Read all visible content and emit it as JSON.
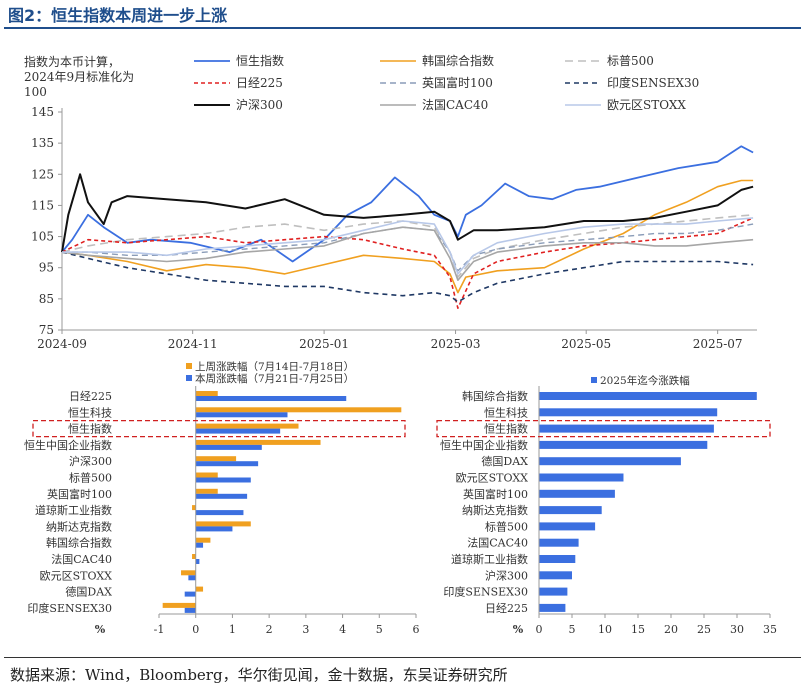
{
  "title": "图2：恒生指数本周进一步上涨",
  "source": "数据来源：Wind，Bloomberg，华尔街见闻，金十数据，东吴证券研究所",
  "chart_data": [
    {
      "type": "line",
      "ylabel": "指数为本币计算，2024年9月标准化为100",
      "ylabel_lines": [
        "指数为本币计算，",
        "2024年9月标准化为",
        "100"
      ],
      "ylim": [
        75,
        145
      ],
      "yticks": [
        75,
        85,
        95,
        105,
        115,
        125,
        135,
        145
      ],
      "xlim": [
        2024.667,
        2025.55
      ],
      "xticks": [
        {
          "label": "2024-09",
          "v": 2024.667
        },
        {
          "label": "2024-11",
          "v": 2024.833
        },
        {
          "label": "2025-01",
          "v": 2025.0
        },
        {
          "label": "2025-03",
          "v": 2025.167
        },
        {
          "label": "2025-05",
          "v": 2025.333
        },
        {
          "label": "2025-07",
          "v": 2025.5
        }
      ],
      "series": [
        {
          "name": "恒生指数",
          "color": "#3b6fe0",
          "dash": "",
          "width": 1.8,
          "x": [
            2024.667,
            2024.68,
            2024.7,
            2024.72,
            2024.75,
            2024.78,
            2024.83,
            2024.88,
            2024.92,
            2024.96,
            2025.0,
            2025.03,
            2025.06,
            2025.09,
            2025.12,
            2025.14,
            2025.16,
            2025.17,
            2025.18,
            2025.2,
            2025.23,
            2025.26,
            2025.29,
            2025.32,
            2025.35,
            2025.4,
            2025.45,
            2025.5,
            2025.53,
            2025.545
          ],
          "y": [
            100,
            104,
            112,
            108,
            103,
            104,
            103,
            100,
            104,
            97,
            104,
            112,
            116,
            124,
            118,
            112,
            110,
            105,
            112,
            115,
            122,
            118,
            117,
            120,
            121,
            124,
            127,
            129,
            134,
            132
          ]
        },
        {
          "name": "韩国综合指数",
          "color": "#f0a020",
          "dash": "",
          "width": 1.6,
          "x": [
            2024.667,
            2024.7,
            2024.75,
            2024.8,
            2024.85,
            2024.9,
            2024.95,
            2025.0,
            2025.05,
            2025.1,
            2025.14,
            2025.16,
            2025.17,
            2025.18,
            2025.22,
            2025.28,
            2025.33,
            2025.38,
            2025.42,
            2025.46,
            2025.5,
            2025.53,
            2025.545
          ],
          "y": [
            100,
            99,
            97,
            94,
            96,
            95,
            93,
            96,
            99,
            98,
            97,
            93,
            87,
            92,
            94,
            95,
            101,
            106,
            112,
            116,
            121,
            123,
            123
          ]
        },
        {
          "name": "标普500",
          "color": "#bfbfbf",
          "dash": "8,5",
          "width": 1.6,
          "x": [
            2024.667,
            2024.7,
            2024.75,
            2024.8,
            2024.85,
            2024.9,
            2024.95,
            2025.0,
            2025.05,
            2025.1,
            2025.14,
            2025.16,
            2025.17,
            2025.19,
            2025.22,
            2025.28,
            2025.33,
            2025.38,
            2025.42,
            2025.46,
            2025.5,
            2025.545
          ],
          "y": [
            100,
            102,
            104,
            105,
            106,
            108,
            109,
            107,
            109,
            110,
            108,
            100,
            92,
            98,
            101,
            104,
            106,
            108,
            109,
            110,
            111,
            112
          ]
        },
        {
          "name": "日经225",
          "color": "#e02020",
          "dash": "4,3",
          "width": 1.6,
          "x": [
            2024.667,
            2024.7,
            2024.75,
            2024.8,
            2024.85,
            2024.9,
            2024.95,
            2025.0,
            2025.05,
            2025.1,
            2025.14,
            2025.16,
            2025.17,
            2025.19,
            2025.22,
            2025.28,
            2025.33,
            2025.38,
            2025.42,
            2025.46,
            2025.5,
            2025.545
          ],
          "y": [
            100,
            104,
            103,
            104,
            105,
            103,
            104,
            105,
            104,
            101,
            99,
            92,
            82,
            93,
            97,
            100,
            102,
            103,
            104,
            105,
            106,
            111
          ]
        },
        {
          "name": "英国富时100",
          "color": "#8a9cb8",
          "dash": "6,4",
          "width": 1.4,
          "x": [
            2024.667,
            2024.7,
            2024.75,
            2024.8,
            2024.85,
            2024.9,
            2024.95,
            2025.0,
            2025.05,
            2025.1,
            2025.14,
            2025.16,
            2025.17,
            2025.19,
            2025.22,
            2025.28,
            2025.33,
            2025.38,
            2025.42,
            2025.46,
            2025.5,
            2025.545
          ],
          "y": [
            100,
            100,
            99,
            99,
            100,
            101,
            102,
            103,
            106,
            108,
            107,
            100,
            94,
            99,
            101,
            103,
            104,
            105,
            106,
            106,
            107,
            109
          ]
        },
        {
          "name": "印度SENSEX30",
          "color": "#1f3864",
          "dash": "5,4",
          "width": 1.6,
          "x": [
            2024.667,
            2024.7,
            2024.75,
            2024.8,
            2024.85,
            2024.9,
            2024.95,
            2025.0,
            2025.05,
            2025.1,
            2025.14,
            2025.16,
            2025.17,
            2025.19,
            2025.22,
            2025.28,
            2025.33,
            2025.38,
            2025.42,
            2025.46,
            2025.5,
            2025.545
          ],
          "y": [
            100,
            98,
            95,
            93,
            91,
            90,
            89,
            89,
            87,
            86,
            87,
            86,
            84,
            87,
            90,
            93,
            95,
            97,
            97,
            97,
            97,
            96
          ]
        },
        {
          "name": "沪深300",
          "color": "#111111",
          "dash": "",
          "width": 2.0,
          "x": [
            2024.667,
            2024.675,
            2024.69,
            2024.7,
            2024.72,
            2024.73,
            2024.75,
            2024.8,
            2024.85,
            2024.9,
            2024.95,
            2025.0,
            2025.05,
            2025.1,
            2025.14,
            2025.16,
            2025.17,
            2025.19,
            2025.22,
            2025.28,
            2025.33,
            2025.38,
            2025.42,
            2025.46,
            2025.5,
            2025.53,
            2025.545
          ],
          "y": [
            100,
            112,
            125,
            116,
            109,
            116,
            118,
            117,
            116,
            114,
            117,
            112,
            111,
            112,
            113,
            110,
            104,
            107,
            107,
            108,
            110,
            110,
            111,
            113,
            115,
            120,
            121
          ]
        },
        {
          "name": "法国CAC40",
          "color": "#a6a6a6",
          "dash": "",
          "width": 1.6,
          "x": [
            2024.667,
            2024.7,
            2024.75,
            2024.8,
            2024.85,
            2024.9,
            2024.95,
            2025.0,
            2025.05,
            2025.1,
            2025.14,
            2025.16,
            2025.17,
            2025.19,
            2025.22,
            2025.28,
            2025.33,
            2025.38,
            2025.42,
            2025.46,
            2025.5,
            2025.545
          ],
          "y": [
            100,
            99,
            98,
            97,
            98,
            100,
            101,
            102,
            106,
            108,
            107,
            98,
            91,
            97,
            100,
            102,
            103,
            103,
            102,
            102,
            103,
            104
          ]
        },
        {
          "name": "欧元区STOXX",
          "color": "#b8c8e8",
          "dash": "",
          "width": 1.6,
          "x": [
            2024.667,
            2024.7,
            2024.75,
            2024.8,
            2024.85,
            2024.9,
            2024.95,
            2025.0,
            2025.05,
            2025.1,
            2025.14,
            2025.16,
            2025.17,
            2025.19,
            2025.22,
            2025.28,
            2025.33,
            2025.38,
            2025.42,
            2025.46,
            2025.5,
            2025.545
          ],
          "y": [
            100,
            100,
            100,
            99,
            101,
            102,
            103,
            104,
            107,
            110,
            109,
            100,
            93,
            99,
            103,
            106,
            108,
            109,
            109,
            109,
            110,
            111
          ]
        }
      ]
    },
    {
      "type": "bar",
      "orientation": "horizontal",
      "categories": [
        "日经225",
        "恒生科技",
        "恒生指数",
        "恒生中国企业指数",
        "沪深300",
        "标普500",
        "英国富时100",
        "道琼斯工业指数",
        "纳斯达克指数",
        "韩国综合指数",
        "法国CAC40",
        "欧元区STOXX",
        "德国DAX",
        "印度SENSEX30"
      ],
      "series": [
        {
          "name": "上周涨跌幅（7月14日-7月18日）",
          "color": "#f0a020",
          "values": [
            0.6,
            5.6,
            2.8,
            3.4,
            1.1,
            0.6,
            0.6,
            -0.1,
            1.5,
            0.4,
            -0.1,
            -0.4,
            0.2,
            -0.9
          ]
        },
        {
          "name": "本周涨跌幅（7月21日-7月25日）",
          "color": "#3b6fe0",
          "values": [
            4.1,
            2.5,
            2.3,
            1.8,
            1.7,
            1.5,
            1.4,
            1.3,
            1.0,
            0.2,
            0.1,
            -0.2,
            -0.3,
            -0.3
          ]
        }
      ],
      "xlim": [
        -1,
        6
      ],
      "xticks": [
        -1,
        0,
        1,
        2,
        3,
        4,
        5,
        6
      ],
      "xunit": "%",
      "highlight": "恒生指数"
    },
    {
      "type": "bar",
      "orientation": "horizontal",
      "categories": [
        "韩国综合指数",
        "恒生科技",
        "恒生指数",
        "恒生中国企业指数",
        "德国DAX",
        "欧元区STOXX",
        "英国富时100",
        "纳斯达克指数",
        "标普500",
        "法国CAC40",
        "道琼斯工业指数",
        "沪深300",
        "印度SENSEX30",
        "日经225"
      ],
      "series": [
        {
          "name": "2025年迄今涨跌幅",
          "color": "#3b6fe0",
          "values": [
            33.0,
            27.0,
            26.5,
            25.5,
            21.5,
            12.8,
            11.5,
            9.5,
            8.5,
            6.0,
            5.5,
            5.0,
            4.3,
            4.0
          ]
        }
      ],
      "xlim": [
        0,
        35
      ],
      "xticks": [
        0,
        5,
        10,
        15,
        20,
        25,
        30,
        35
      ],
      "xunit": "%",
      "highlight": "恒生指数"
    }
  ]
}
